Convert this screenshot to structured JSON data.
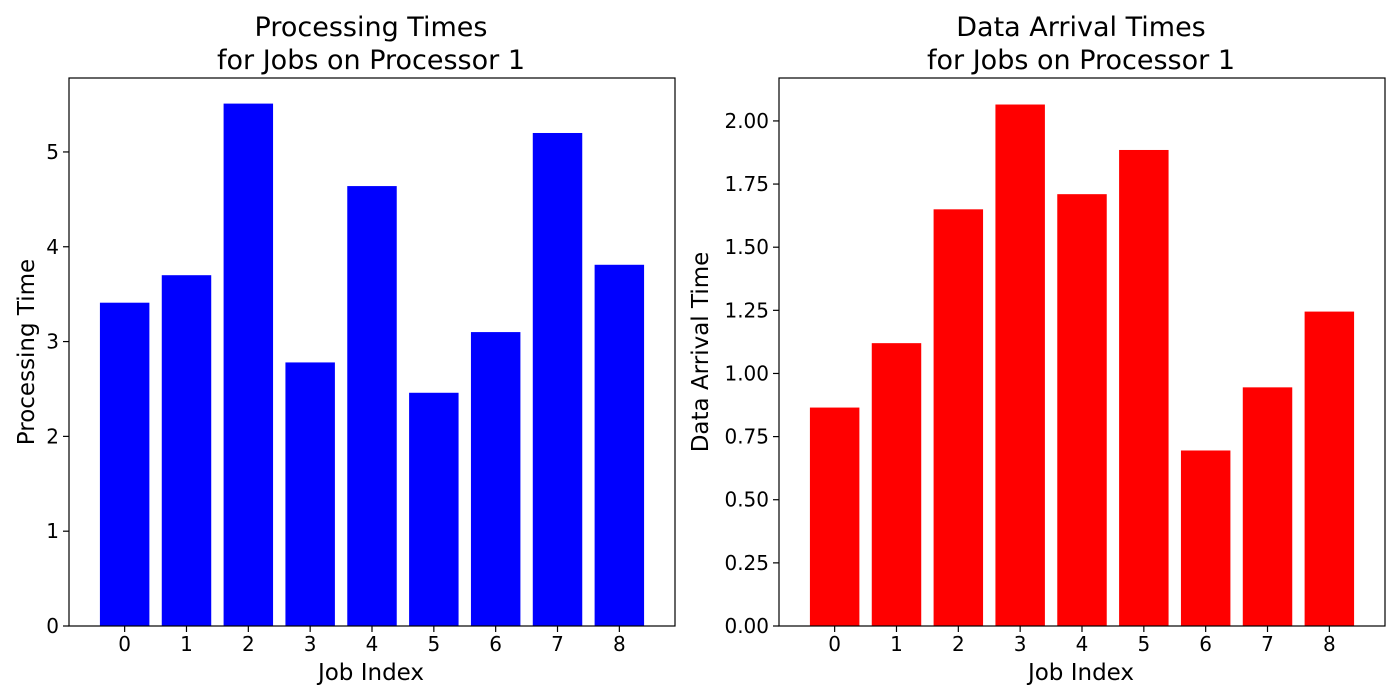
{
  "chart_data": [
    {
      "type": "bar",
      "title_lines": [
        "Processing Times",
        "for Jobs on Processor 1"
      ],
      "xlabel": "Job Index",
      "ylabel": "Processing Time",
      "categories": [
        "0",
        "1",
        "2",
        "3",
        "4",
        "5",
        "6",
        "7",
        "8"
      ],
      "values": [
        3.41,
        3.7,
        5.51,
        2.78,
        4.64,
        2.46,
        3.1,
        5.2,
        3.81
      ],
      "ylim": [
        0,
        5.78
      ],
      "yticks": [
        0,
        1,
        2,
        3,
        4,
        5
      ],
      "ytick_labels": [
        "0",
        "1",
        "2",
        "3",
        "4",
        "5"
      ],
      "color": "#0000ff",
      "grid": false
    },
    {
      "type": "bar",
      "title_lines": [
        "Data Arrival Times",
        "for Jobs on Processor 1"
      ],
      "xlabel": "Job Index",
      "ylabel": "Data Arrival Time",
      "categories": [
        "0",
        "1",
        "2",
        "3",
        "4",
        "5",
        "6",
        "7",
        "8"
      ],
      "values": [
        0.865,
        1.12,
        1.65,
        2.065,
        1.71,
        1.885,
        0.695,
        0.945,
        1.245
      ],
      "ylim": [
        0,
        2.17
      ],
      "yticks": [
        0,
        0.25,
        0.5,
        0.75,
        1.0,
        1.25,
        1.5,
        1.75,
        2.0
      ],
      "ytick_labels": [
        "0.00",
        "0.25",
        "0.50",
        "0.75",
        "1.00",
        "1.25",
        "1.50",
        "1.75",
        "2.00"
      ],
      "color": "#ff0000",
      "grid": false
    }
  ]
}
